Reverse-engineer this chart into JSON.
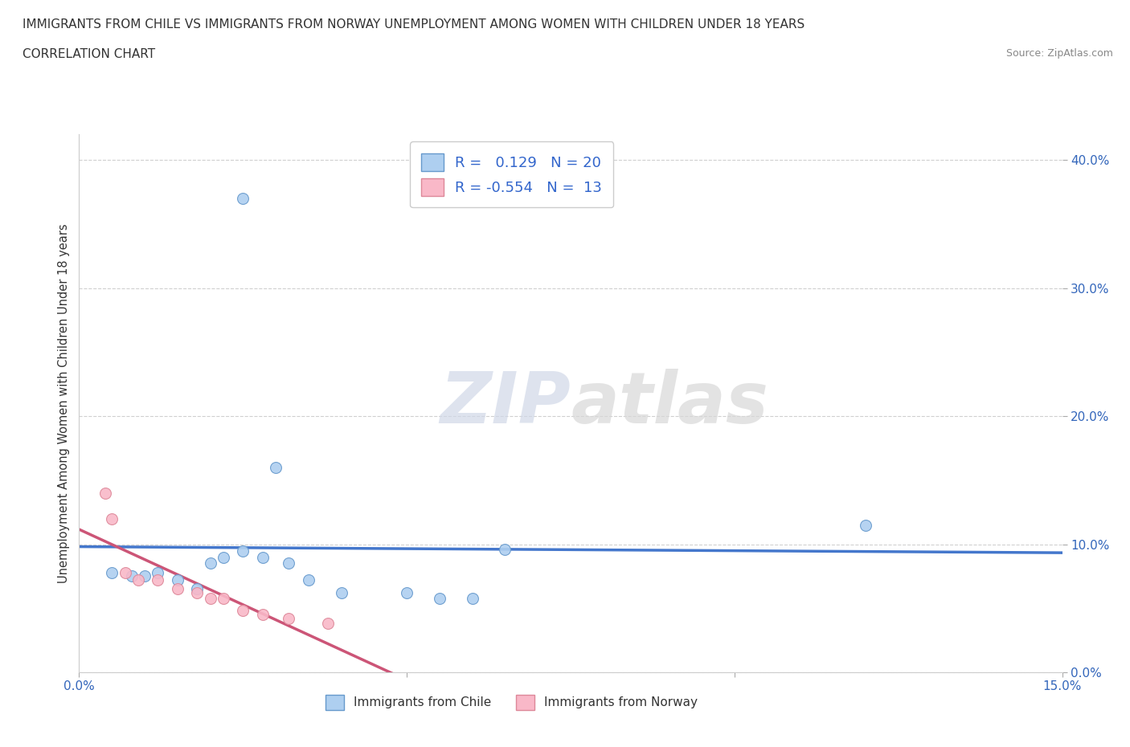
{
  "title_line1": "IMMIGRANTS FROM CHILE VS IMMIGRANTS FROM NORWAY UNEMPLOYMENT AMONG WOMEN WITH CHILDREN UNDER 18 YEARS",
  "title_line2": "CORRELATION CHART",
  "source": "Source: ZipAtlas.com",
  "ylabel": "Unemployment Among Women with Children Under 18 years",
  "xlim": [
    0.0,
    0.15
  ],
  "ylim": [
    0.0,
    0.42
  ],
  "xticks": [
    0.0,
    0.05,
    0.1,
    0.15
  ],
  "yticks": [
    0.0,
    0.1,
    0.2,
    0.3,
    0.4
  ],
  "xticklabels": [
    "0.0%",
    "",
    "",
    "15.0%"
  ],
  "yticklabels": [
    "0.0%",
    "10.0%",
    "20.0%",
    "30.0%",
    "40.0%"
  ],
  "chile_color": "#aecff0",
  "chile_edge_color": "#6699cc",
  "norway_color": "#f9b8c8",
  "norway_edge_color": "#dd8899",
  "trend_chile_color": "#4477cc",
  "trend_norway_color": "#cc5577",
  "R_chile": 0.129,
  "N_chile": 20,
  "R_norway": -0.554,
  "N_norway": 13,
  "chile_x": [
    0.005,
    0.008,
    0.01,
    0.012,
    0.015,
    0.018,
    0.02,
    0.022,
    0.025,
    0.028,
    0.03,
    0.032,
    0.035,
    0.04,
    0.05,
    0.055,
    0.06,
    0.065,
    0.12,
    0.025
  ],
  "chile_y": [
    0.078,
    0.075,
    0.075,
    0.078,
    0.072,
    0.065,
    0.085,
    0.09,
    0.095,
    0.09,
    0.16,
    0.085,
    0.072,
    0.062,
    0.062,
    0.058,
    0.058,
    0.096,
    0.115,
    0.37
  ],
  "norway_x": [
    0.004,
    0.005,
    0.007,
    0.009,
    0.012,
    0.015,
    0.018,
    0.02,
    0.022,
    0.025,
    0.028,
    0.032,
    0.038
  ],
  "norway_y": [
    0.14,
    0.12,
    0.078,
    0.072,
    0.072,
    0.065,
    0.062,
    0.058,
    0.058,
    0.048,
    0.045,
    0.042,
    0.038
  ],
  "watermark_zip": "ZIP",
  "watermark_atlas": "atlas",
  "background_color": "#ffffff",
  "grid_color": "#d0d0d0",
  "marker_size": 100
}
